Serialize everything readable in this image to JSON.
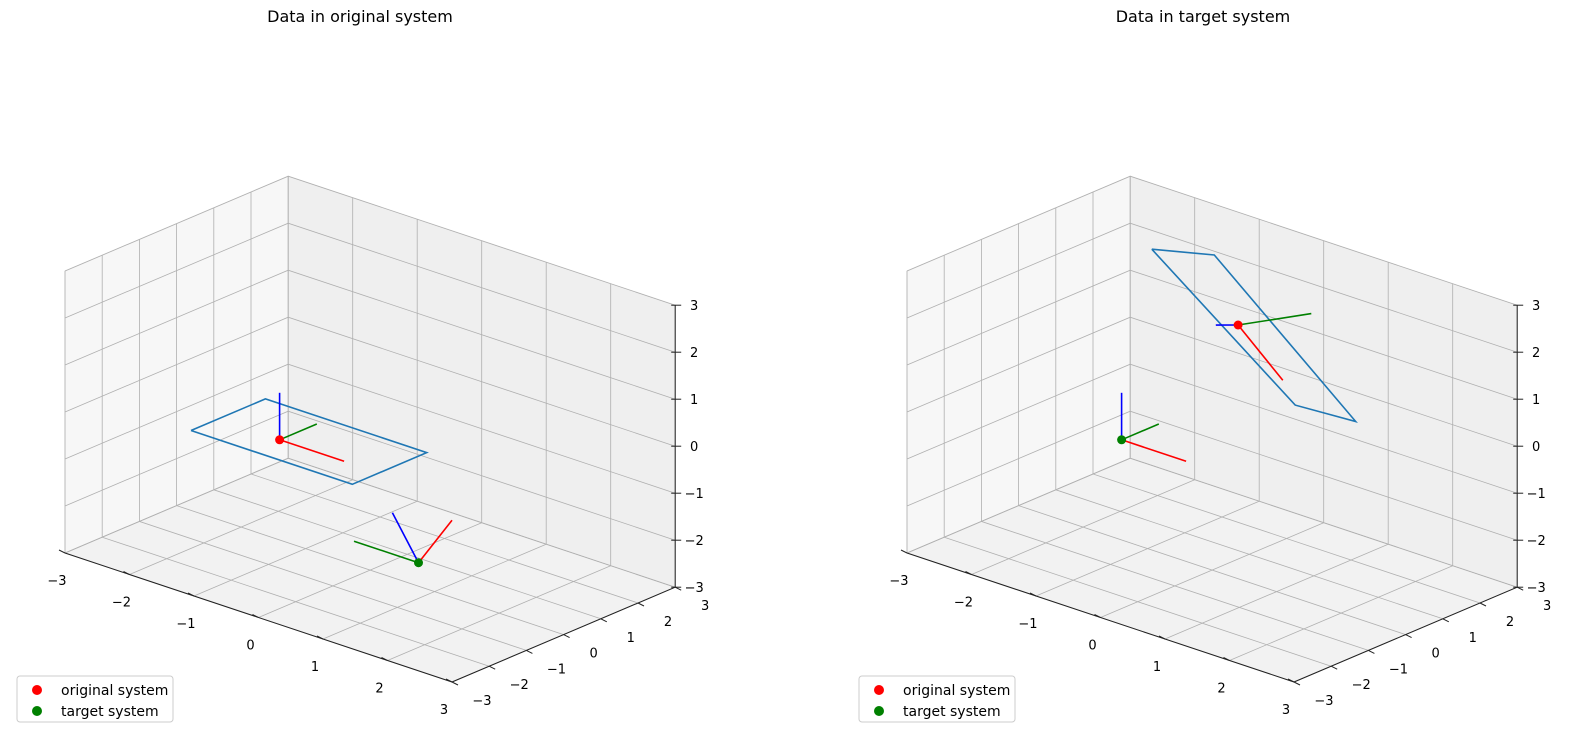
{
  "chart_data": [
    {
      "type": "line3d",
      "title": "Data in original system",
      "xlim": [
        -3,
        3
      ],
      "ylim": [
        -3,
        3
      ],
      "zlim": [
        -3,
        3
      ],
      "ticks": [
        -3,
        -2,
        -1,
        0,
        1,
        2,
        3
      ],
      "tick_labels": [
        "−3",
        "−2",
        "−1",
        "0",
        "1",
        "2",
        "3"
      ],
      "grid": true,
      "legend_position": "lower-left",
      "legend": [
        {
          "label": "original system",
          "color": "#ff0000"
        },
        {
          "label": "target system",
          "color": "#008000"
        }
      ],
      "points": [
        {
          "series": "original system",
          "color": "#ff0000",
          "xyz": [
            -1.0,
            -0.7,
            -0.45
          ]
        },
        {
          "series": "target system",
          "color": "#008000",
          "xyz": [
            0.75,
            0.0,
            -2.5
          ]
        }
      ],
      "axis_frames": [
        {
          "origin": [
            -1.0,
            -0.7,
            -0.45
          ],
          "segments": [
            {
              "color": "#ff0000",
              "to": [
                0.0,
                -0.7,
                -0.45
              ]
            },
            {
              "color": "#008000",
              "to": [
                -1.0,
                0.3,
                -0.45
              ]
            },
            {
              "color": "#0000ff",
              "to": [
                -1.0,
                -0.7,
                0.55
              ]
            }
          ]
        },
        {
          "origin": [
            0.75,
            0.0,
            -2.5
          ],
          "segments": [
            {
              "color": "#ff0000",
              "to": [
                0.75,
                0.9,
                -1.9
              ]
            },
            {
              "color": "#008000",
              "to": [
                -0.25,
                0.0,
                -2.5
              ]
            },
            {
              "color": "#0000ff",
              "to": [
                0.75,
                -0.7,
                -1.2
              ]
            }
          ]
        }
      ],
      "polygons": [
        {
          "color": "#1f77b4",
          "vertices": [
            [
              -2.2,
              -1.0,
              -0.7
            ],
            [
              0.3,
              -1.0,
              -0.7
            ],
            [
              0.3,
              1.0,
              -0.7
            ],
            [
              -2.2,
              1.0,
              -0.7
            ]
          ]
        }
      ]
    },
    {
      "type": "line3d",
      "title": "Data in target system",
      "xlim": [
        -3,
        3
      ],
      "ylim": [
        -3,
        3
      ],
      "zlim": [
        -3,
        3
      ],
      "ticks": [
        -3,
        -2,
        -1,
        0,
        1,
        2,
        3
      ],
      "tick_labels": [
        "−3",
        "−2",
        "−1",
        "0",
        "1",
        "2",
        "3"
      ],
      "grid": true,
      "legend_position": "lower-left",
      "legend": [
        {
          "label": "original system",
          "color": "#ff0000"
        },
        {
          "label": "target system",
          "color": "#008000"
        }
      ],
      "points": [
        {
          "series": "original system",
          "color": "#ff0000",
          "xyz": [
            -0.75,
            2.0,
            1.2
          ]
        },
        {
          "series": "target system",
          "color": "#008000",
          "xyz": [
            -1.0,
            -0.7,
            -0.45
          ]
        }
      ],
      "axis_frames": [
        {
          "origin": [
            -0.75,
            2.0,
            1.2
          ],
          "segments": [
            {
              "color": "#ff0000",
              "to": [
                0.0,
                1.9,
                0.4
              ]
            },
            {
              "color": "#008000",
              "to": [
                -0.25,
                3.1,
                1.3
              ]
            },
            {
              "color": "#0000ff",
              "to": [
                -0.75,
                1.4,
                1.4
              ]
            }
          ]
        },
        {
          "origin": [
            -1.0,
            -0.7,
            -0.45
          ],
          "segments": [
            {
              "color": "#ff0000",
              "to": [
                0.0,
                -0.7,
                -0.45
              ]
            },
            {
              "color": "#008000",
              "to": [
                -1.0,
                0.3,
                -0.45
              ]
            },
            {
              "color": "#0000ff",
              "to": [
                -1.0,
                -0.7,
                0.55
              ]
            }
          ]
        }
      ],
      "polygons": [
        {
          "color": "#1f77b4",
          "vertices": [
            [
              -1.8,
              1.5,
              2.5
            ],
            [
              -2.1,
              3.7,
              1.5
            ],
            [
              0.9,
              2.3,
              -0.2
            ],
            [
              1.0,
              0.5,
              0.8
            ]
          ]
        }
      ]
    }
  ]
}
